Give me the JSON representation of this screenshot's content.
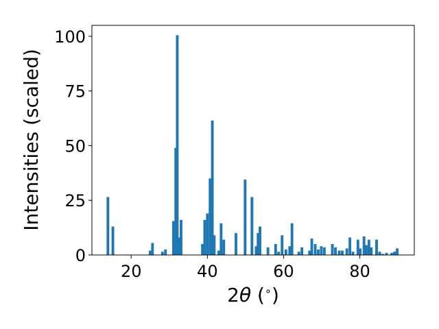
{
  "chart_data": {
    "type": "bar",
    "xlabel": "2θ (°)",
    "xlabel_parts": {
      "pre": "2",
      "var": "θ",
      "post": " (",
      "sup": "∘",
      "close": ")"
    },
    "ylabel": "Intensities (scaled)",
    "xlim": [
      9.7,
      94.3
    ],
    "ylim": [
      0,
      105
    ],
    "x_ticks": [
      20,
      40,
      60,
      80
    ],
    "y_ticks": [
      0,
      25,
      50,
      75,
      100
    ],
    "grid": false,
    "bar_color": "#1f77b4",
    "x": [
      13.9,
      15.2,
      25.0,
      25.6,
      28.2,
      29.0,
      31.1,
      31.7,
      32.1,
      32.6,
      33.1,
      38.7,
      39.3,
      40.0,
      40.7,
      41.3,
      41.8,
      43.0,
      43.6,
      44.3,
      47.5,
      49.9,
      51.7,
      52.8,
      53.3,
      53.8,
      55.9,
      57.9,
      58.7,
      59.6,
      60.6,
      61.6,
      62.2,
      64.0,
      64.8,
      66.8,
      67.4,
      68.3,
      69.1,
      69.9,
      70.7,
      72.8,
      73.6,
      74.6,
      75.4,
      76.6,
      77.4,
      78.2,
      79.5,
      80.1,
      81.1,
      81.7,
      82.4,
      83.0,
      84.4,
      85.2,
      86.0,
      87.0,
      88.4,
      89.1,
      89.8
    ],
    "values": [
      26.5,
      13,
      2,
      5.5,
      1.5,
      2.5,
      15.5,
      49,
      100.5,
      8,
      16,
      5,
      16,
      19,
      35,
      61.5,
      9,
      2,
      14.5,
      7,
      10,
      34.5,
      26.5,
      4,
      10,
      13,
      3.5,
      5,
      1.5,
      9,
      2.5,
      4,
      14.5,
      1.5,
      3.5,
      2,
      7.5,
      5,
      2.5,
      4,
      3.5,
      5,
      3.5,
      2,
      2,
      3,
      8,
      1.5,
      7,
      3,
      8.5,
      4.5,
      7,
      3.5,
      7,
      1.5,
      0.5,
      1,
      1,
      1.5,
      3
    ]
  }
}
